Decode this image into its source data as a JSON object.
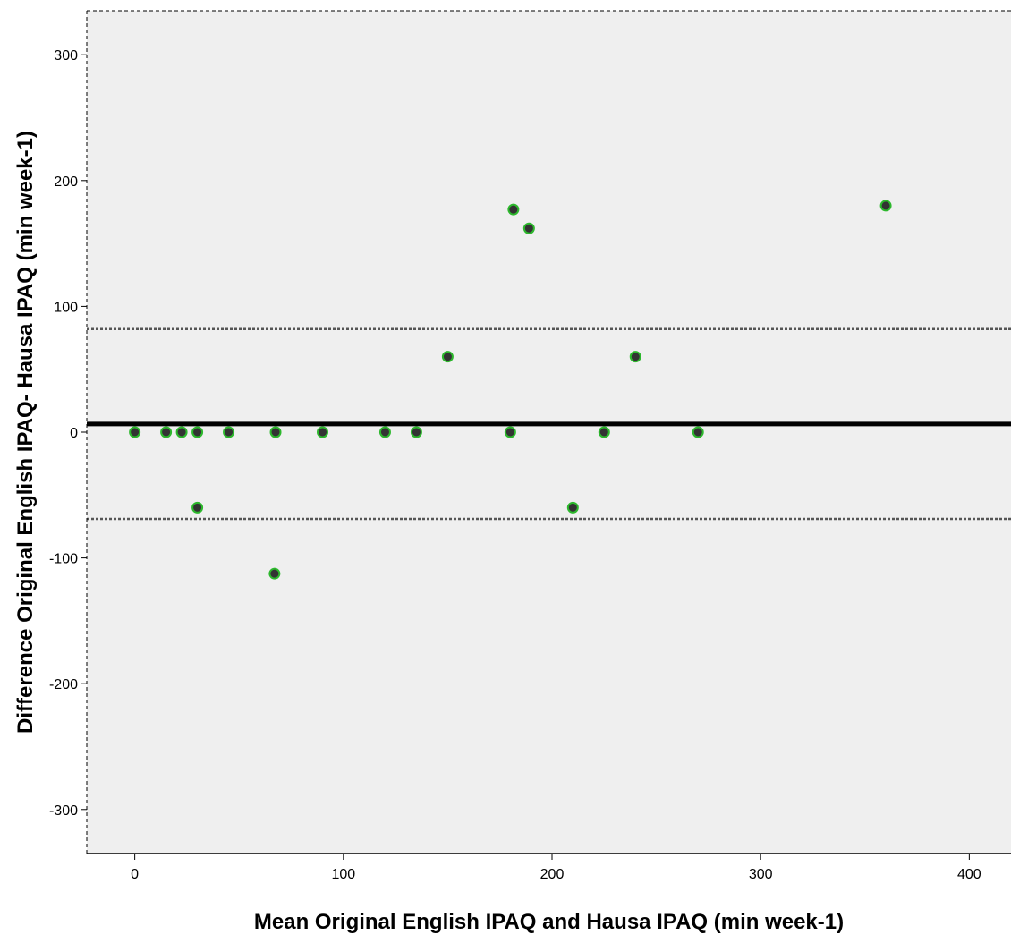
{
  "chart_data": {
    "type": "scatter",
    "title": "",
    "xlabel": "Mean Original English IPAQ and Hausa IPAQ (min week-1)",
    "ylabel": "Difference Original English IPAQ- Hausa IPAQ (min week-1)",
    "xlim": [
      -23,
      420
    ],
    "ylim": [
      -335,
      335
    ],
    "xticks": [
      0,
      100,
      200,
      300,
      400
    ],
    "yticks": [
      -300,
      -200,
      -100,
      0,
      100,
      200,
      300
    ],
    "grid": false,
    "legend": "none",
    "points": [
      {
        "x": 0,
        "y": 0
      },
      {
        "x": 15,
        "y": 0
      },
      {
        "x": 22.5,
        "y": 0
      },
      {
        "x": 30,
        "y": 0
      },
      {
        "x": 30,
        "y": -60
      },
      {
        "x": 45,
        "y": 0
      },
      {
        "x": 67.5,
        "y": 0
      },
      {
        "x": 67,
        "y": -112.5
      },
      {
        "x": 90,
        "y": 0
      },
      {
        "x": 120,
        "y": 0
      },
      {
        "x": 135,
        "y": 0
      },
      {
        "x": 150,
        "y": 60
      },
      {
        "x": 180,
        "y": 0
      },
      {
        "x": 181.5,
        "y": 177
      },
      {
        "x": 189,
        "y": 162
      },
      {
        "x": 210,
        "y": -60
      },
      {
        "x": 225,
        "y": 0
      },
      {
        "x": 240,
        "y": 60
      },
      {
        "x": 270,
        "y": 0
      },
      {
        "x": 360,
        "y": 180
      }
    ],
    "reference_lines": [
      {
        "y": 6.5,
        "style": "solid-thick"
      },
      {
        "y": 82,
        "style": "dashed"
      },
      {
        "y": -69,
        "style": "dashed"
      }
    ],
    "colors": {
      "plot_background": "#efefef",
      "marker_fill": "#333333",
      "marker_edge": "#2db82d",
      "mean_line": "#000000",
      "limit_line": "#555555"
    }
  }
}
